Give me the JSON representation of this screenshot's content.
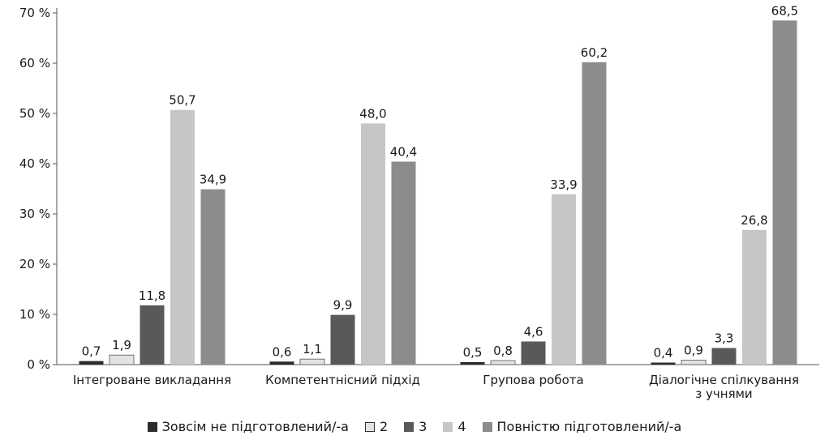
{
  "chart_data": {
    "type": "bar",
    "categories": [
      [
        "Інтегроване викладання"
      ],
      [
        "Компетентнісний підхід"
      ],
      [
        "Групова робота"
      ],
      [
        "Діалогічне спілкування",
        "з учнями"
      ]
    ],
    "series": [
      {
        "name": "Зовсім не підготовлений/-а",
        "color": "#2b2b2b",
        "values": [
          0.7,
          0.6,
          0.5,
          0.4
        ],
        "labels": [
          "0,7",
          "0,6",
          "0,5",
          "0,4"
        ]
      },
      {
        "name": "2",
        "color": "#e3e3e3",
        "values": [
          1.9,
          1.1,
          0.8,
          0.9
        ],
        "labels": [
          "1,9",
          "1,1",
          "0,8",
          "0,9"
        ]
      },
      {
        "name": "3",
        "color": "#595959",
        "values": [
          11.8,
          9.9,
          4.6,
          3.3
        ],
        "labels": [
          "11,8",
          "9,9",
          "4,6",
          "3,3"
        ]
      },
      {
        "name": "4",
        "color": "#c6c6c6",
        "values": [
          50.7,
          48.0,
          33.9,
          26.8
        ],
        "labels": [
          "50,7",
          "48,0",
          "33,9",
          "26,8"
        ]
      },
      {
        "name": "Повністю підготовлений/-а",
        "color": "#8c8c8c",
        "values": [
          34.9,
          40.4,
          60.2,
          68.5
        ],
        "labels": [
          "34,9",
          "40,4",
          "60,2",
          "68,5"
        ]
      }
    ],
    "y_ticks": [
      "0 %",
      "10 %",
      "20 %",
      "30 %",
      "40 %",
      "50 %",
      "60 %",
      "70 %"
    ],
    "ylim": [
      0,
      70
    ],
    "grid": false,
    "legend_position": "bottom"
  }
}
